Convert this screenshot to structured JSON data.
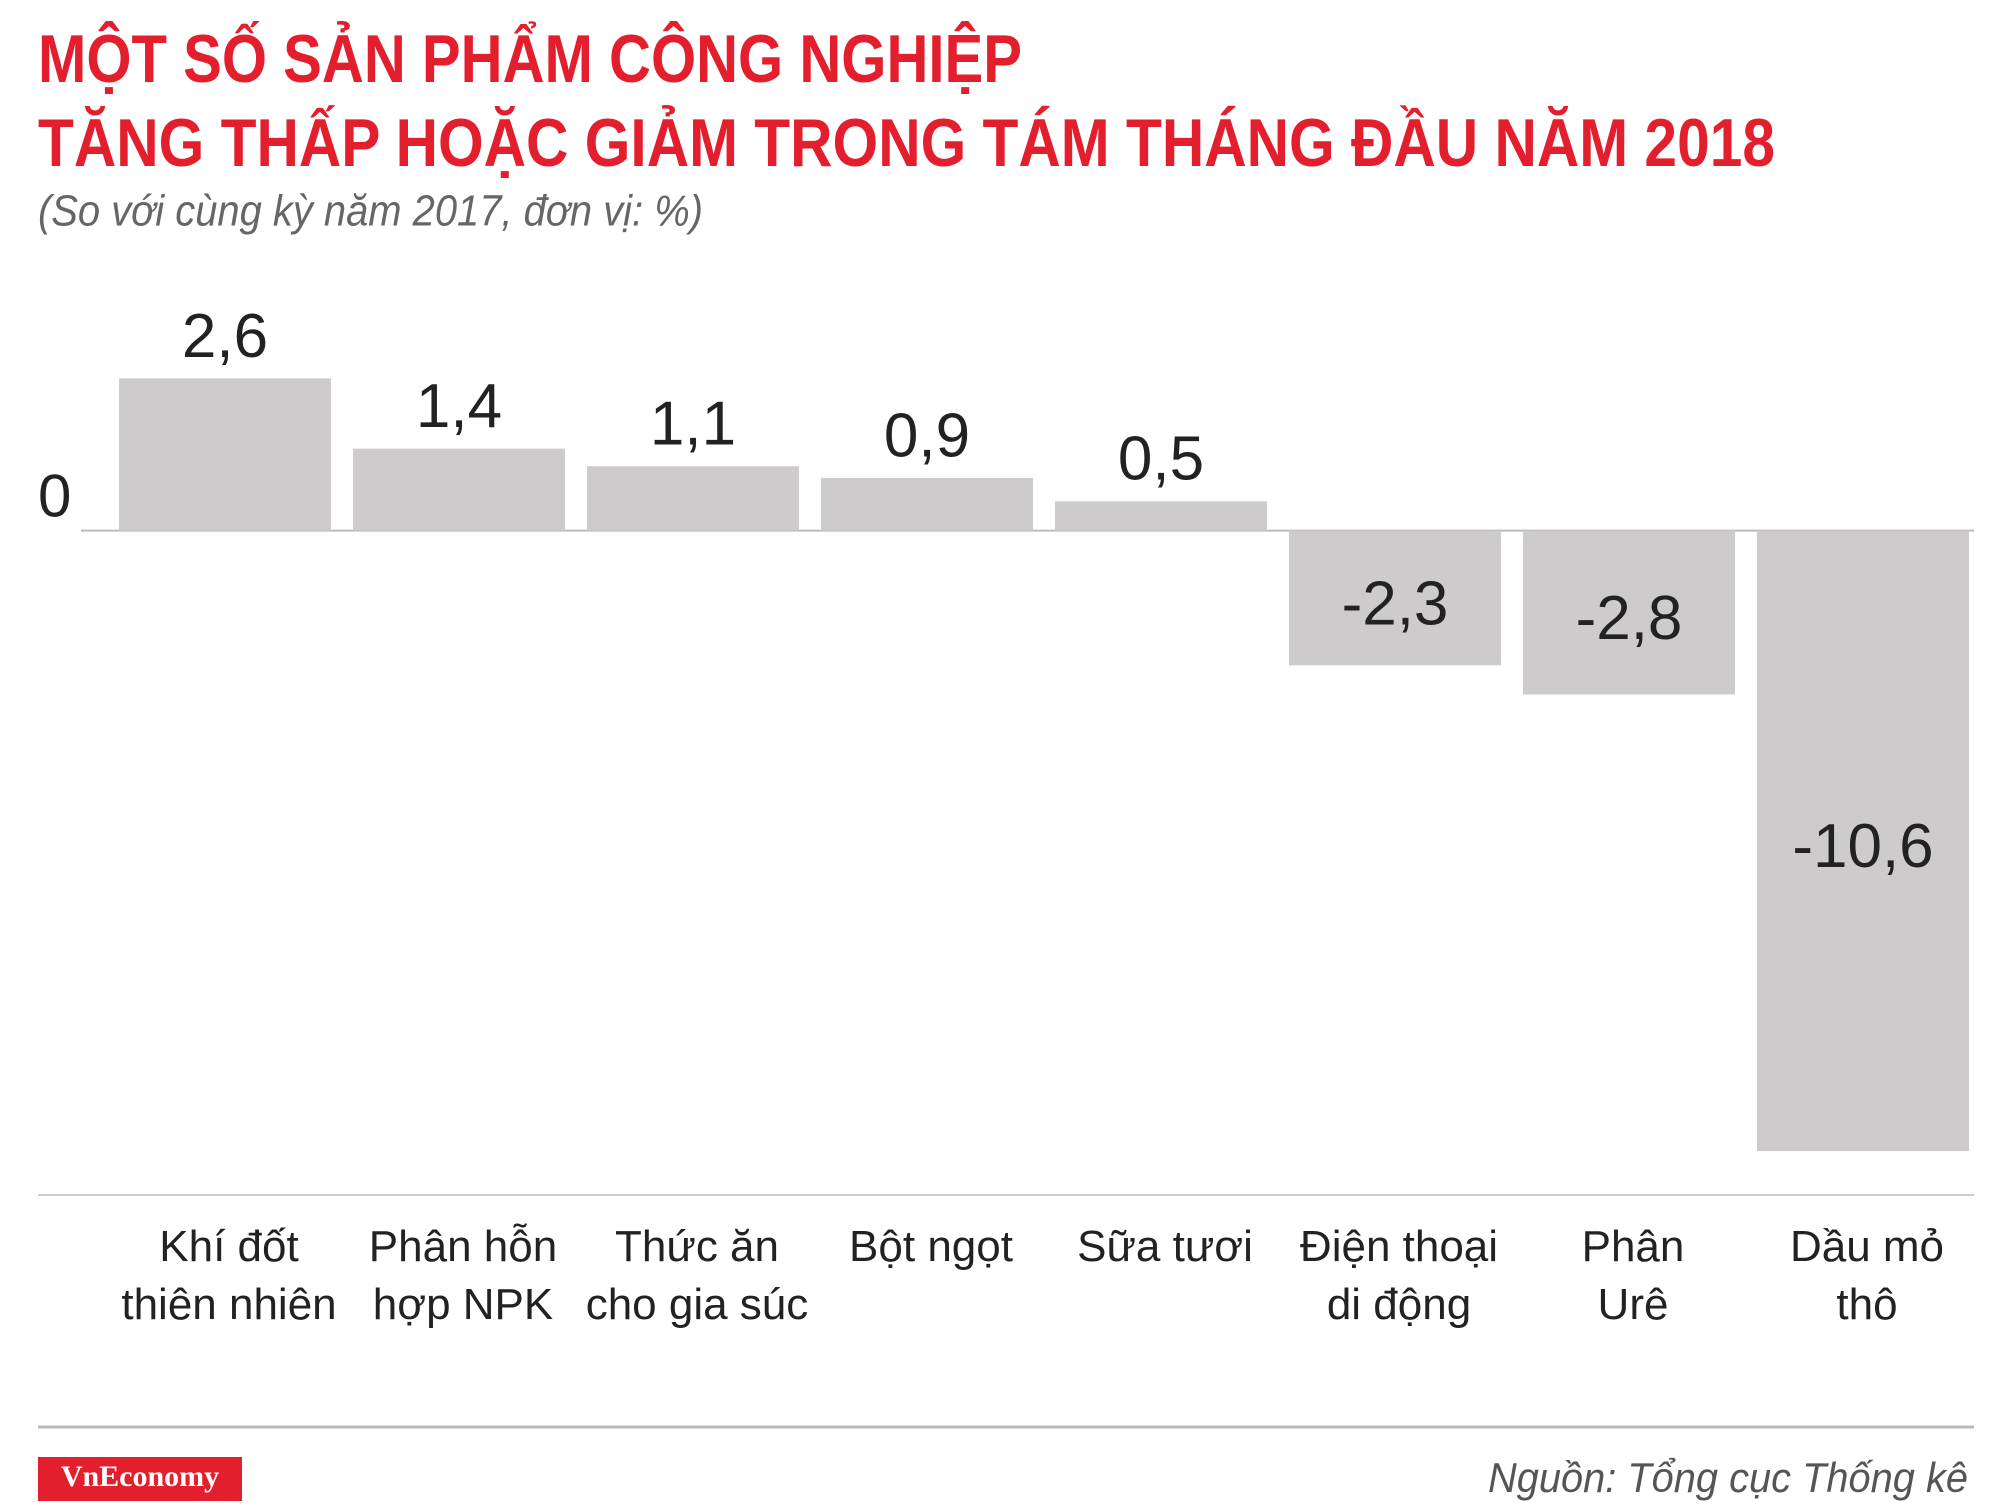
{
  "chart_data": {
    "type": "bar",
    "title": [
      "MỘT SỐ SẢN PHẨM CÔNG NGHIỆP",
      "TĂNG THẤP HOẶC GIẢM TRONG TÁM THÁNG ĐẦU NĂM 2018"
    ],
    "subtitle": "(So với cùng kỳ năm 2017, đơn vị: %)",
    "categories": [
      "Khí đốt\nthiên nhiên",
      "Phân hỗn\nhợp NPK",
      "Thức ăn\ncho gia súc",
      "Bột ngọt",
      "Sữa tươi",
      "Điện thoại\ndi động",
      "Phân\nUrê",
      "Dầu mỏ\nthô"
    ],
    "values": [
      2.6,
      1.4,
      1.1,
      0.9,
      0.5,
      -2.3,
      -2.8,
      -10.6
    ],
    "value_labels": [
      "2,6",
      "1,4",
      "1,1",
      "0,9",
      "0,5",
      "-2,3",
      "-2,8",
      "-10,6"
    ],
    "color": "#cdcbcb",
    "ylim": [
      -11.35,
      3
    ],
    "yticks": [
      0
    ],
    "grid": true,
    "source": "Nguồn: Tổng cục Thống kê",
    "logo": "VnEconomy"
  }
}
